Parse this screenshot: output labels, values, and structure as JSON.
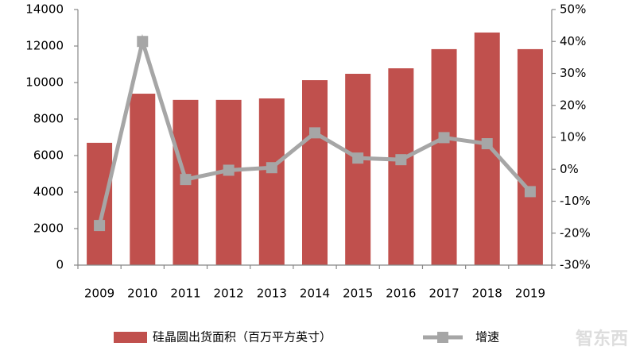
{
  "chart_data": {
    "type": "bar_line",
    "categories": [
      "2009",
      "2010",
      "2011",
      "2012",
      "2013",
      "2014",
      "2015",
      "2016",
      "2017",
      "2018",
      "2019"
    ],
    "series": [
      {
        "name": "硅晶圆出货面积（百万平方英寸）",
        "color": "#c0504d",
        "type": "bar",
        "axis": "y",
        "values": [
          6700,
          9390,
          9050,
          9050,
          9130,
          10130,
          10480,
          10780,
          11830,
          12740,
          11830
        ]
      },
      {
        "name": "增速",
        "color": "#a6a6a6",
        "type": "line",
        "axis": "y2",
        "values": [
          -17.6,
          40.0,
          -3.2,
          -0.3,
          0.5,
          11.4,
          3.5,
          3.0,
          9.9,
          8.0,
          -7.0
        ]
      }
    ],
    "ylim": [
      0,
      14000
    ],
    "yticks": [
      0,
      2000,
      4000,
      6000,
      8000,
      10000,
      12000,
      14000
    ],
    "y2lim": [
      -30,
      50
    ],
    "y2ticks": [
      {
        "value": -30,
        "label": "-30%"
      },
      {
        "value": -20,
        "label": "-20%"
      },
      {
        "value": -10,
        "label": "-10%"
      },
      {
        "value": 0,
        "label": "0%"
      },
      {
        "value": 10,
        "label": "10%"
      },
      {
        "value": 20,
        "label": "20%"
      },
      {
        "value": 30,
        "label": "30%"
      },
      {
        "value": 40,
        "label": "40%"
      },
      {
        "value": 50,
        "label": "50%"
      }
    ],
    "grid": false,
    "legend": "bottom",
    "watermark": "智东西"
  }
}
